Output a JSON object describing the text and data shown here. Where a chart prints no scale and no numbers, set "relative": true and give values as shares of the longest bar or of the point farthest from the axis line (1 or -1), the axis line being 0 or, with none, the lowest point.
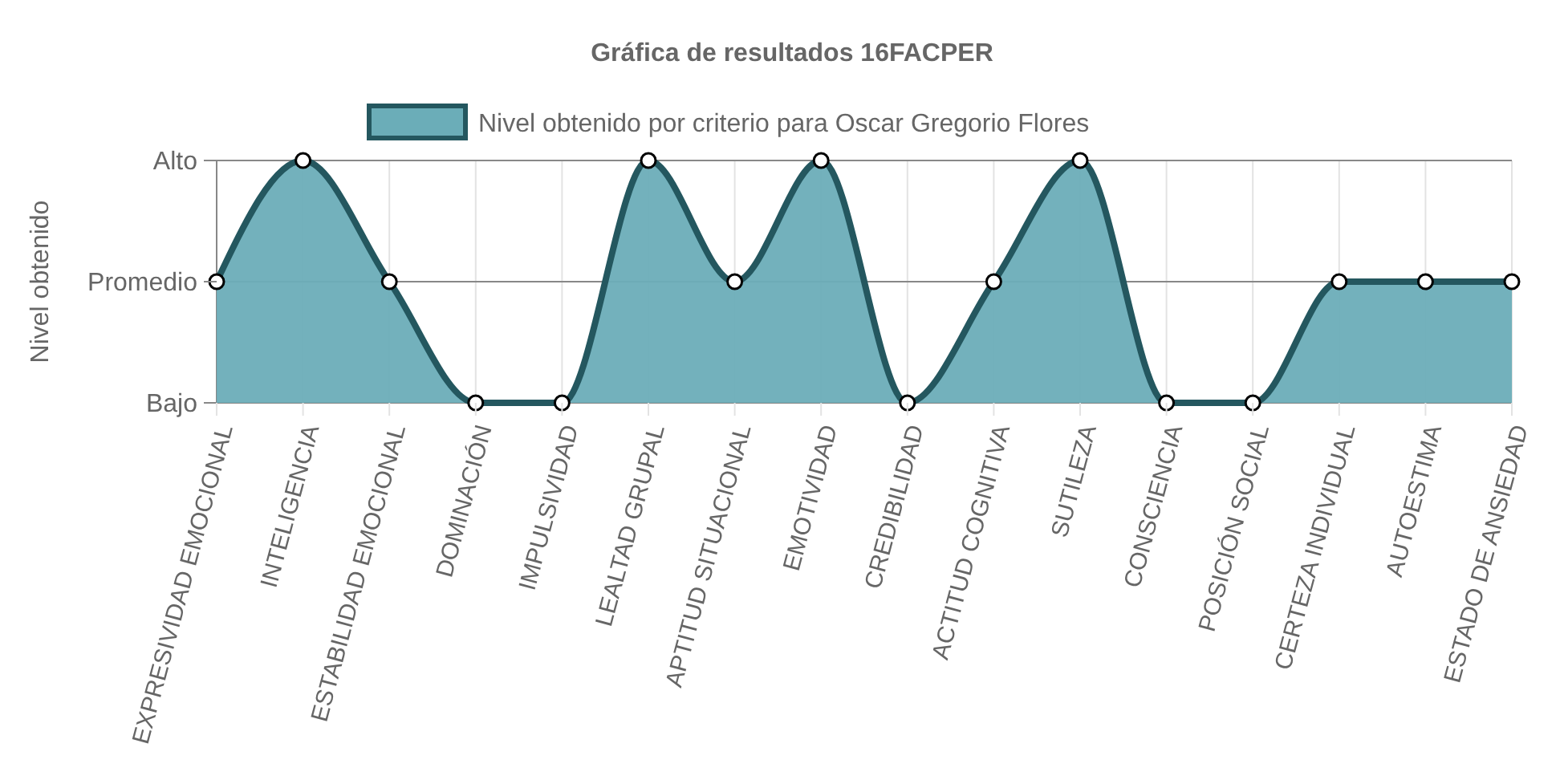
{
  "chart_data": {
    "type": "area",
    "title": "Gráfica de resultados 16FACPER",
    "ylabel": "Nivel obtenido",
    "categories": [
      "EXPRESIVIDAD EMOCIONAL",
      "INTELIGENCIA",
      "ESTABILIDAD EMOCIONAL",
      "DOMINACIÓN",
      "IMPULSIVIDAD",
      "LEALTAD GRUPAL",
      "APTITUD SITUACIONAL",
      "EMOTIVIDAD",
      "CREDIBILIDAD",
      "ACTITUD COGNITIVA",
      "SUTILEZA",
      "CONSCIENCIA",
      "POSICIÓN SOCIAL",
      "CERTEZA INDIVIDUAL",
      "AUTOESTIMA",
      "ESTADO DE ANSIEDAD"
    ],
    "series": [
      {
        "name": "Nivel obtenido por criterio para Oscar Gregorio Flores",
        "color": "#24575f",
        "values": [
          0.5,
          1,
          0.5,
          0,
          0,
          1,
          0.5,
          1,
          0,
          0.5,
          1,
          0,
          0,
          0.5,
          0.5,
          0.5
        ]
      }
    ],
    "relative": true,
    "annotations": [
      "Bajo",
      "Promedio",
      "Alto"
    ],
    "grid": true,
    "legend": "top",
    "marker": "circle"
  }
}
